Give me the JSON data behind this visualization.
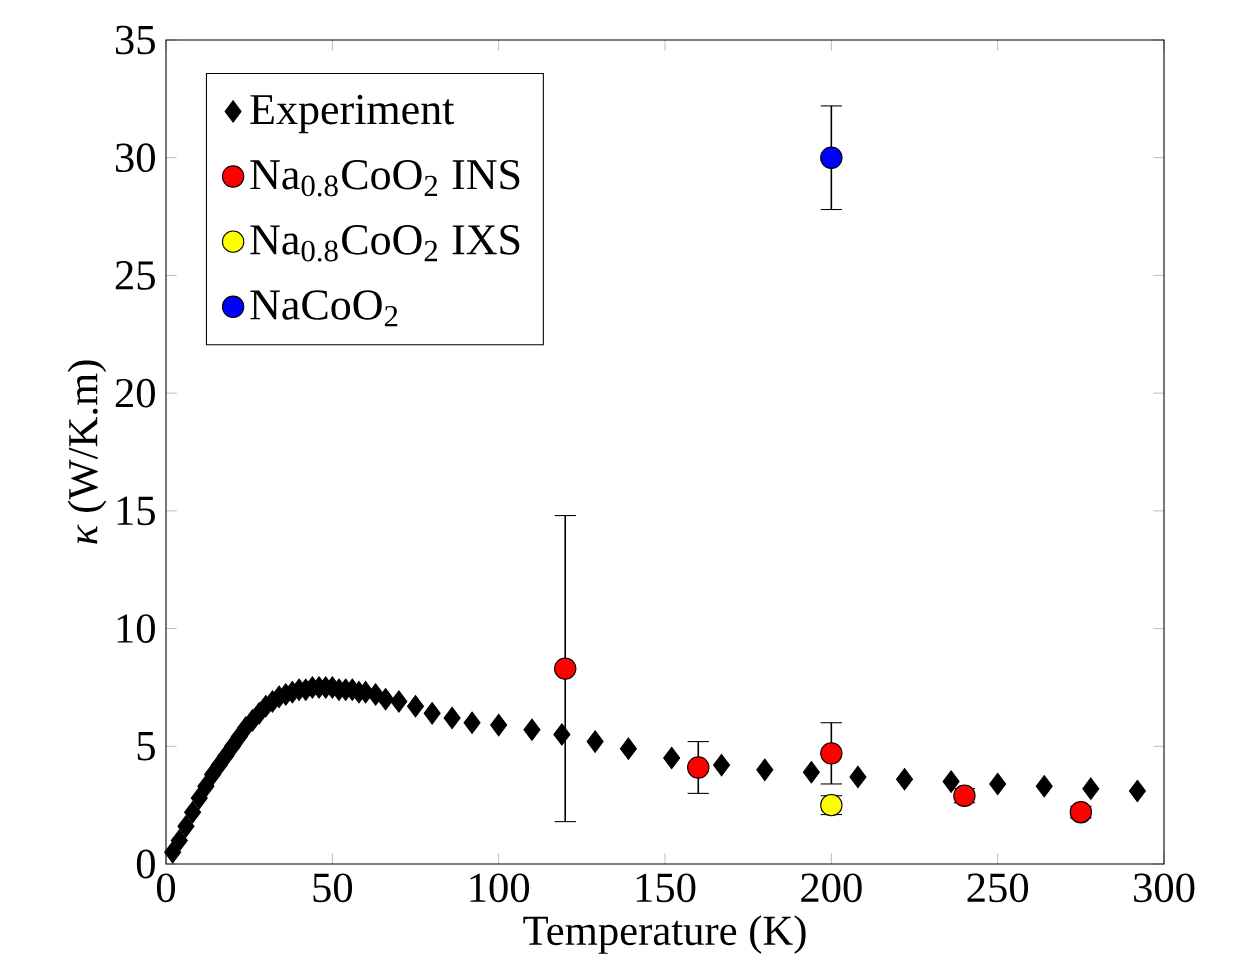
{
  "chart_data": {
    "type": "scatter",
    "xlabel": "Temperature (K)",
    "ylabel": "*κ* (W/K.m)",
    "xlim": [
      0,
      300
    ],
    "ylim": [
      0,
      35
    ],
    "xticks": [
      0,
      50,
      100,
      150,
      200,
      250,
      300
    ],
    "yticks": [
      0,
      5,
      10,
      15,
      20,
      25,
      30,
      35
    ],
    "legend": "top left",
    "grid": false,
    "series": [
      {
        "name": "Experiment",
        "color": "#000000",
        "marker": "diamond",
        "x": [
          2,
          4,
          6,
          8,
          10,
          12,
          14,
          16,
          18,
          20,
          22,
          24,
          26,
          28,
          30,
          32,
          34,
          36,
          38,
          40,
          42,
          44,
          46,
          48,
          50,
          52,
          54,
          56,
          58,
          60,
          63,
          66,
          70,
          75,
          80,
          86,
          92,
          100,
          110,
          119,
          129,
          139,
          152,
          167,
          180,
          194,
          208,
          222,
          236,
          250,
          264,
          278,
          292
        ],
        "values": [
          0.5,
          1.0,
          1.6,
          2.2,
          2.8,
          3.3,
          3.8,
          4.2,
          4.6,
          5.0,
          5.4,
          5.8,
          6.1,
          6.4,
          6.7,
          6.9,
          7.1,
          7.2,
          7.3,
          7.4,
          7.4,
          7.5,
          7.5,
          7.5,
          7.5,
          7.4,
          7.4,
          7.4,
          7.3,
          7.3,
          7.2,
          7.0,
          6.9,
          6.7,
          6.4,
          6.2,
          6.0,
          5.9,
          5.7,
          5.5,
          5.2,
          4.9,
          4.5,
          4.2,
          4.0,
          3.9,
          3.7,
          3.6,
          3.5,
          3.4,
          3.3,
          3.2,
          3.1
        ]
      },
      {
        "name": "Na$_{0.8}$CoO$_{2}$ INS",
        "color": "#ff0000",
        "marker": "circle",
        "x": [
          120,
          160,
          200,
          240,
          275
        ],
        "values": [
          8.3,
          4.1,
          4.7,
          2.9,
          2.2
        ],
        "errors": [
          6.5,
          1.1,
          1.3,
          0.3,
          0.25
        ]
      },
      {
        "name": "Na$_{0.8}$CoO$_{2}$ IXS",
        "color": "#ffff00",
        "marker": "circle",
        "x": [
          200
        ],
        "values": [
          2.5
        ],
        "errors": [
          0.4
        ]
      },
      {
        "name": "NaCoO$_{2}$",
        "color": "#0000ff",
        "marker": "circle",
        "x": [
          200
        ],
        "values": [
          30.0
        ],
        "errors": [
          2.2
        ]
      }
    ]
  }
}
